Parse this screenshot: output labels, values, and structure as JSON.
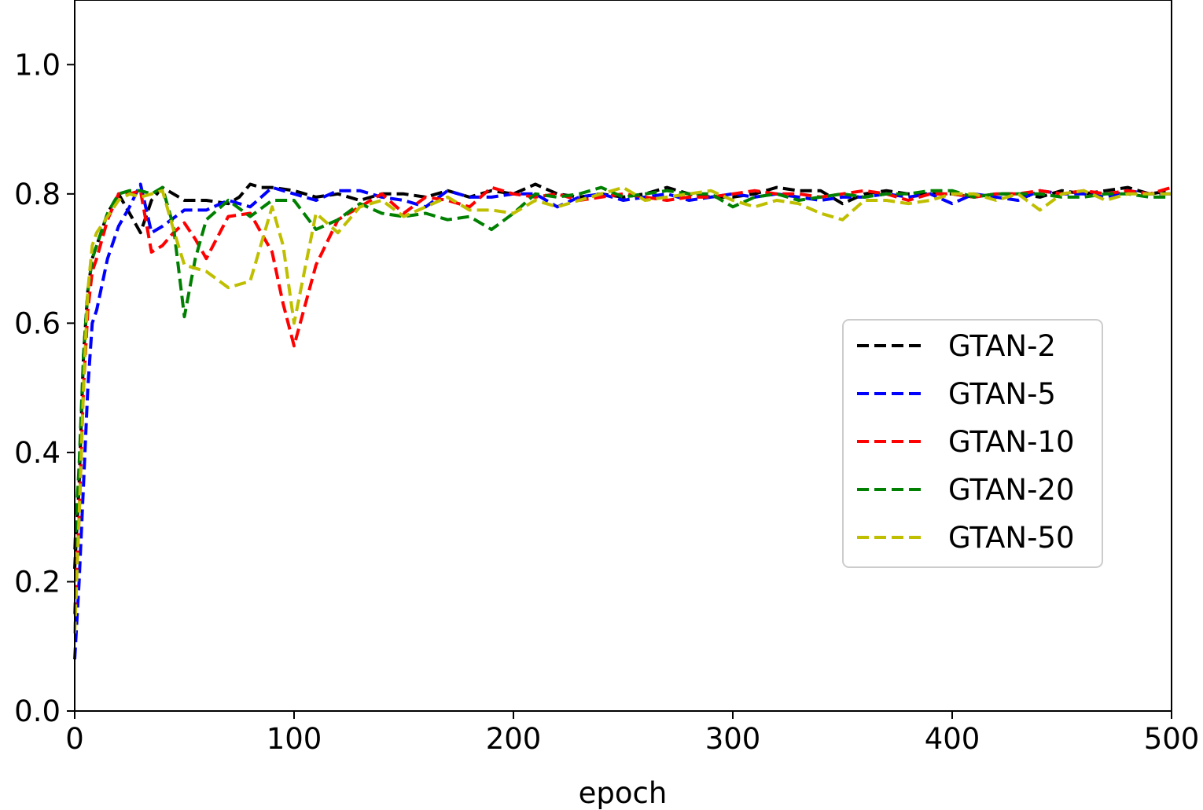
{
  "chart_data": {
    "type": "line",
    "title": "",
    "xlabel": "epoch",
    "ylabel": "",
    "xlim": [
      0,
      500
    ],
    "ylim": [
      0,
      1.1
    ],
    "xticks": [
      "0",
      "100",
      "200",
      "300",
      "400",
      "500"
    ],
    "yticks": [
      "0.0",
      "0.2",
      "0.4",
      "0.6",
      "0.8",
      "1.0"
    ],
    "grid": false,
    "legend_position": "center-right",
    "series": [
      {
        "name": "GTAN-2",
        "color": "#000000",
        "x": [
          0,
          2,
          4,
          6,
          8,
          10,
          15,
          20,
          25,
          30,
          35,
          40,
          50,
          60,
          70,
          75,
          80,
          85,
          90,
          100,
          110,
          120,
          130,
          140,
          150,
          160,
          170,
          180,
          190,
          200,
          210,
          220,
          230,
          240,
          250,
          260,
          270,
          280,
          290,
          300,
          310,
          320,
          330,
          340,
          350,
          360,
          370,
          380,
          390,
          400,
          410,
          420,
          430,
          440,
          450,
          460,
          470,
          480,
          490,
          500
        ],
        "y": [
          0.22,
          0.35,
          0.55,
          0.65,
          0.7,
          0.72,
          0.77,
          0.8,
          0.77,
          0.74,
          0.79,
          0.81,
          0.79,
          0.79,
          0.785,
          0.795,
          0.815,
          0.81,
          0.81,
          0.805,
          0.795,
          0.8,
          0.79,
          0.8,
          0.8,
          0.795,
          0.805,
          0.795,
          0.805,
          0.8,
          0.815,
          0.8,
          0.795,
          0.8,
          0.795,
          0.8,
          0.81,
          0.8,
          0.795,
          0.795,
          0.8,
          0.81,
          0.805,
          0.805,
          0.785,
          0.8,
          0.805,
          0.8,
          0.8,
          0.8,
          0.795,
          0.8,
          0.8,
          0.795,
          0.805,
          0.8,
          0.805,
          0.81,
          0.8,
          0.805
        ]
      },
      {
        "name": "GTAN-5",
        "color": "#0000ff",
        "x": [
          0,
          2,
          4,
          6,
          8,
          10,
          15,
          20,
          25,
          30,
          35,
          40,
          50,
          60,
          70,
          80,
          90,
          100,
          110,
          120,
          130,
          140,
          150,
          160,
          170,
          180,
          190,
          200,
          210,
          220,
          230,
          240,
          250,
          260,
          270,
          280,
          290,
          300,
          310,
          320,
          330,
          340,
          350,
          360,
          370,
          380,
          390,
          400,
          410,
          420,
          430,
          440,
          450,
          460,
          470,
          480,
          490,
          500
        ],
        "y": [
          0.08,
          0.2,
          0.35,
          0.5,
          0.6,
          0.62,
          0.7,
          0.75,
          0.78,
          0.815,
          0.74,
          0.75,
          0.775,
          0.775,
          0.79,
          0.78,
          0.81,
          0.8,
          0.79,
          0.805,
          0.805,
          0.795,
          0.79,
          0.78,
          0.805,
          0.795,
          0.795,
          0.8,
          0.8,
          0.78,
          0.795,
          0.8,
          0.79,
          0.795,
          0.8,
          0.79,
          0.795,
          0.8,
          0.795,
          0.8,
          0.795,
          0.79,
          0.795,
          0.795,
          0.8,
          0.795,
          0.8,
          0.785,
          0.8,
          0.795,
          0.79,
          0.805,
          0.8,
          0.8,
          0.795,
          0.805,
          0.8,
          0.8
        ]
      },
      {
        "name": "GTAN-10",
        "color": "#ff0000",
        "x": [
          0,
          2,
          4,
          6,
          8,
          10,
          15,
          20,
          25,
          30,
          35,
          40,
          45,
          50,
          55,
          60,
          70,
          80,
          90,
          95,
          100,
          110,
          120,
          130,
          140,
          150,
          160,
          170,
          180,
          190,
          200,
          210,
          220,
          230,
          240,
          250,
          260,
          270,
          280,
          290,
          300,
          310,
          320,
          330,
          340,
          350,
          360,
          370,
          380,
          390,
          400,
          410,
          420,
          430,
          440,
          450,
          460,
          470,
          480,
          490,
          500
        ],
        "y": [
          0.15,
          0.3,
          0.5,
          0.62,
          0.68,
          0.7,
          0.76,
          0.8,
          0.8,
          0.805,
          0.71,
          0.72,
          0.74,
          0.755,
          0.73,
          0.7,
          0.765,
          0.77,
          0.71,
          0.63,
          0.565,
          0.69,
          0.76,
          0.78,
          0.8,
          0.77,
          0.795,
          0.79,
          0.78,
          0.81,
          0.8,
          0.795,
          0.8,
          0.79,
          0.795,
          0.8,
          0.795,
          0.79,
          0.795,
          0.795,
          0.8,
          0.805,
          0.8,
          0.8,
          0.795,
          0.8,
          0.805,
          0.8,
          0.79,
          0.8,
          0.8,
          0.795,
          0.8,
          0.8,
          0.805,
          0.8,
          0.805,
          0.8,
          0.805,
          0.8,
          0.81
        ]
      },
      {
        "name": "GTAN-20",
        "color": "#008000",
        "x": [
          0,
          2,
          4,
          6,
          8,
          10,
          15,
          20,
          25,
          30,
          35,
          40,
          45,
          50,
          55,
          60,
          70,
          80,
          90,
          100,
          110,
          120,
          130,
          140,
          150,
          160,
          170,
          180,
          190,
          200,
          210,
          220,
          230,
          240,
          250,
          260,
          270,
          280,
          290,
          300,
          310,
          320,
          330,
          340,
          350,
          360,
          370,
          380,
          390,
          400,
          410,
          420,
          430,
          440,
          450,
          460,
          470,
          480,
          490,
          500
        ],
        "y": [
          0.25,
          0.38,
          0.55,
          0.65,
          0.7,
          0.72,
          0.77,
          0.8,
          0.805,
          0.805,
          0.8,
          0.81,
          0.75,
          0.61,
          0.7,
          0.76,
          0.79,
          0.765,
          0.79,
          0.79,
          0.745,
          0.76,
          0.785,
          0.77,
          0.765,
          0.77,
          0.76,
          0.765,
          0.745,
          0.77,
          0.8,
          0.795,
          0.8,
          0.81,
          0.795,
          0.8,
          0.805,
          0.8,
          0.8,
          0.78,
          0.795,
          0.8,
          0.79,
          0.795,
          0.8,
          0.795,
          0.8,
          0.8,
          0.805,
          0.805,
          0.795,
          0.8,
          0.8,
          0.8,
          0.795,
          0.795,
          0.8,
          0.8,
          0.795,
          0.795
        ]
      },
      {
        "name": "GTAN-50",
        "color": "#bfbf00",
        "x": [
          0,
          2,
          4,
          6,
          8,
          10,
          15,
          20,
          25,
          30,
          35,
          40,
          45,
          50,
          60,
          70,
          80,
          90,
          95,
          100,
          110,
          120,
          130,
          140,
          150,
          160,
          170,
          180,
          190,
          200,
          210,
          220,
          230,
          240,
          250,
          260,
          270,
          280,
          290,
          300,
          310,
          320,
          330,
          340,
          350,
          360,
          370,
          380,
          390,
          400,
          410,
          420,
          430,
          440,
          450,
          460,
          470,
          480,
          490,
          500
        ],
        "y": [
          0.12,
          0.3,
          0.5,
          0.65,
          0.72,
          0.74,
          0.765,
          0.79,
          0.8,
          0.795,
          0.8,
          0.805,
          0.745,
          0.69,
          0.68,
          0.655,
          0.665,
          0.78,
          0.72,
          0.6,
          0.77,
          0.74,
          0.78,
          0.79,
          0.765,
          0.78,
          0.795,
          0.775,
          0.775,
          0.77,
          0.79,
          0.78,
          0.79,
          0.8,
          0.81,
          0.79,
          0.795,
          0.8,
          0.805,
          0.79,
          0.78,
          0.79,
          0.785,
          0.77,
          0.76,
          0.79,
          0.79,
          0.785,
          0.79,
          0.8,
          0.8,
          0.79,
          0.8,
          0.775,
          0.8,
          0.805,
          0.79,
          0.8,
          0.8,
          0.8
        ]
      }
    ]
  }
}
